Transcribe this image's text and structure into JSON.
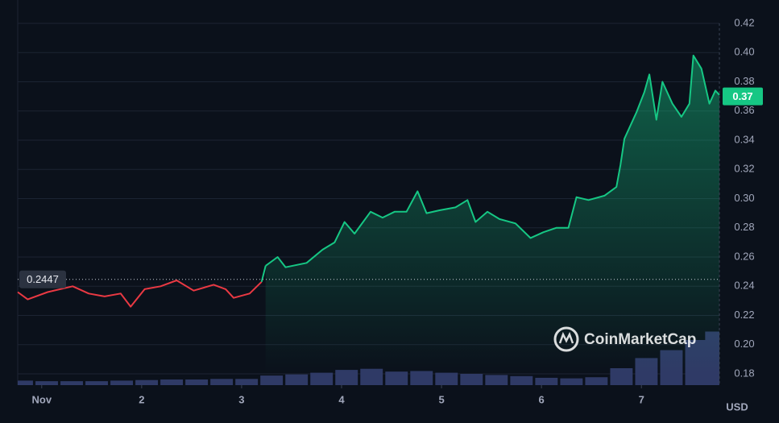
{
  "chart_data": {
    "type": "line",
    "x": [
      0.76,
      0.86,
      1.06,
      1.31,
      1.47,
      1.63,
      1.79,
      1.89,
      2.03,
      2.19,
      2.35,
      2.52,
      2.72,
      2.84,
      2.92,
      3.08,
      3.2,
      3.24,
      3.36,
      3.44,
      3.65,
      3.81,
      3.93,
      4.03,
      4.13,
      4.29,
      4.41,
      4.53,
      4.65,
      4.76,
      4.85,
      4.98,
      5.14,
      5.26,
      5.34,
      5.46,
      5.58,
      5.74,
      5.89,
      6.02,
      6.15,
      6.27,
      6.35,
      6.47,
      6.63,
      6.75,
      6.79,
      6.83,
      6.95,
      7.03,
      7.08,
      7.15,
      7.21,
      7.31,
      7.4,
      7.48,
      7.52,
      7.6,
      7.68,
      7.74,
      7.78
    ],
    "values": [
      0.236,
      0.231,
      0.236,
      0.24,
      0.235,
      0.233,
      0.235,
      0.226,
      0.238,
      0.24,
      0.244,
      0.237,
      0.241,
      0.238,
      0.232,
      0.235,
      0.243,
      0.254,
      0.26,
      0.253,
      0.256,
      0.265,
      0.27,
      0.284,
      0.276,
      0.291,
      0.287,
      0.291,
      0.291,
      0.305,
      0.29,
      0.292,
      0.294,
      0.299,
      0.284,
      0.291,
      0.286,
      0.283,
      0.273,
      0.277,
      0.28,
      0.28,
      0.301,
      0.299,
      0.302,
      0.308,
      0.323,
      0.341,
      0.359,
      0.373,
      0.385,
      0.354,
      0.38,
      0.365,
      0.356,
      0.365,
      0.398,
      0.389,
      0.365,
      0.374,
      0.371
    ],
    "baseline": 0.2447,
    "current_price": 0.37,
    "up_color": "#16c784",
    "down_color": "#ea3943",
    "volume": {
      "color": "#2f3a66",
      "x": [
        0.8,
        1.05,
        1.3,
        1.55,
        1.8,
        2.05,
        2.3,
        2.55,
        2.8,
        3.05,
        3.3,
        3.55,
        3.8,
        4.05,
        4.3,
        4.55,
        4.8,
        5.05,
        5.3,
        5.55,
        5.8,
        6.05,
        6.3,
        6.55,
        6.8,
        7.05,
        7.3,
        7.55,
        7.75
      ],
      "values": [
        8,
        7,
        7,
        7,
        8,
        9,
        10,
        10,
        11,
        11,
        17,
        19,
        22,
        27,
        29,
        24,
        25,
        22,
        20,
        18,
        16,
        13,
        12,
        14,
        30,
        48,
        62,
        80,
        95
      ]
    },
    "y2lim": [
      0,
      100
    ],
    "xlim": [
      0.76,
      7.78
    ],
    "xticks": [
      {
        "value": 1,
        "label": "Nov"
      },
      2,
      3,
      4,
      5,
      6,
      7
    ],
    "ylim": [
      0.18,
      0.42
    ],
    "yticks": [
      0.18,
      {
        "value": 0.2,
        "label": "0.20"
      },
      0.22,
      0.24,
      0.26,
      0.28,
      {
        "value": 0.3,
        "label": "0.30"
      },
      0.32,
      0.34,
      0.36,
      0.38,
      {
        "value": 0.4,
        "label": "0.40"
      },
      0.42
    ],
    "grid": true,
    "currency": "USD",
    "watermark": "CoinMarketCap"
  }
}
